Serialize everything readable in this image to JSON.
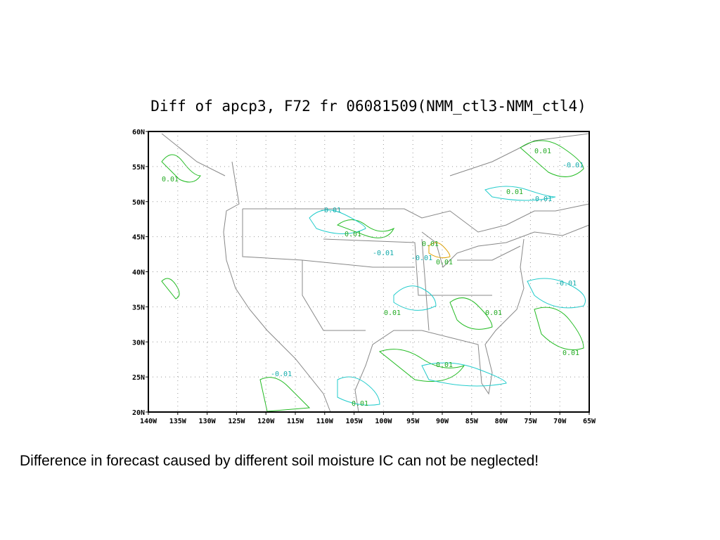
{
  "map": {
    "title": "Diff of apcp3, F72 fr 06081509(NMM_ctl3-NMM_ctl4)",
    "lat_labels": [
      "60N",
      "55N",
      "50N",
      "45N",
      "40N",
      "35N",
      "30N",
      "25N",
      "20N"
    ],
    "lon_labels": [
      "140W",
      "135W",
      "130W",
      "125W",
      "120W",
      "115W",
      "110W",
      "105W",
      "100W",
      "95W",
      "90W",
      "85W",
      "80W",
      "75W",
      "70W",
      "65W"
    ],
    "contour_labels": [
      "-0.01",
      "0.01",
      "0.01",
      "-0.01",
      "0.01",
      "-0.01",
      "0.01",
      "0.01",
      "-0.01",
      "0.01",
      "-0.01",
      "0.01",
      "0.01",
      "-0.01",
      "0.01",
      "-0.01",
      "0.01",
      "0.01"
    ]
  },
  "caption": "Difference in forecast caused by different soil moisture IC can not be neglected!"
}
